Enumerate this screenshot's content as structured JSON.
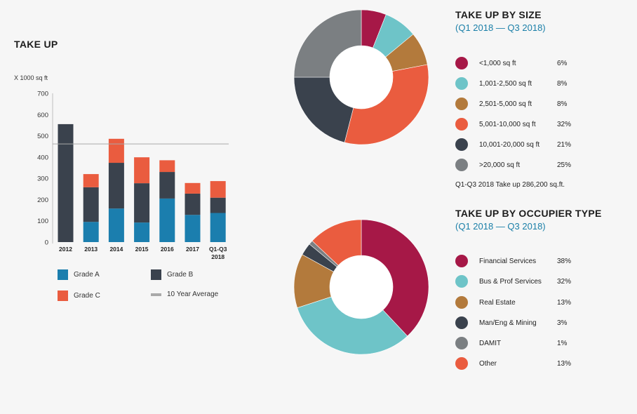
{
  "bar_section": {
    "title": "TAKE UP",
    "unit_label": "X 1000 sq ft",
    "legend": [
      {
        "label": "Grade A",
        "color": "#1b7eae",
        "kind": "box"
      },
      {
        "label": "Grade B",
        "color": "#3a424d",
        "kind": "box"
      },
      {
        "label": "Grade C",
        "color": "#ea5c3f",
        "kind": "box"
      },
      {
        "label": "10 Year Average",
        "color": "#a9a9a9",
        "kind": "line"
      }
    ]
  },
  "size_section": {
    "title": "TAKE UP BY SIZE",
    "subtitle": "(Q1 2018 — Q3 2018)",
    "footnote": "Q1-Q3 2018 Take up 286,200 sq.ft."
  },
  "occupier_section": {
    "title": "TAKE UP BY OCCUPIER TYPE",
    "subtitle": "(Q1 2018 — Q3 2018)"
  },
  "chart_data": [
    {
      "type": "bar",
      "stacked": true,
      "title": "TAKE UP",
      "ylabel": "X 1000 sq ft",
      "xlabel": "",
      "categories": [
        "2012",
        "2013",
        "2014",
        "2015",
        "2016",
        "2017",
        "Q1-Q3 2018"
      ],
      "category_lines": [
        [
          "2012"
        ],
        [
          "2013"
        ],
        [
          "2014"
        ],
        [
          "2015"
        ],
        [
          "2016"
        ],
        [
          "2017"
        ],
        [
          "Q1-Q3",
          "2018"
        ]
      ],
      "series": [
        {
          "name": "Grade A",
          "color": "#1b7eae",
          "values": [
            0,
            95,
            158,
            92,
            205,
            128,
            137
          ]
        },
        {
          "name": "Grade B",
          "color": "#3a424d",
          "values": [
            555,
            163,
            215,
            185,
            125,
            100,
            72
          ]
        },
        {
          "name": "Grade C",
          "color": "#ea5c3f",
          "values": [
            0,
            62,
            113,
            122,
            55,
            50,
            78
          ]
        }
      ],
      "reference_line": {
        "name": "10 Year Average",
        "value": 462,
        "color": "#a9a9a9"
      },
      "ylim": [
        0,
        700
      ],
      "yticks": [
        0,
        100,
        200,
        300,
        400,
        500,
        600,
        700
      ]
    },
    {
      "type": "pie",
      "title": "TAKE UP BY SIZE",
      "subtitle": "(Q1 2018 — Q3 2018)",
      "slices": [
        {
          "label": "<1,000 sq ft",
          "value": 6,
          "pct_label": "6%",
          "color": "#a61847"
        },
        {
          "label": "1,001-2,500 sq ft",
          "value": 8,
          "pct_label": "8%",
          "color": "#6ec4c8"
        },
        {
          "label": "2,501-5,000 sq ft",
          "value": 8,
          "pct_label": "8%",
          "color": "#b37a3c"
        },
        {
          "label": "5,001-10,000 sq ft",
          "value": 32,
          "pct_label": "32%",
          "color": "#ea5c3f"
        },
        {
          "label": "10,001-20,000 sq ft",
          "value": 21,
          "pct_label": "21%",
          "color": "#3a424d"
        },
        {
          "label": ">20,000 sq ft",
          "value": 25,
          "pct_label": "25%",
          "color": "#7b7f82"
        }
      ]
    },
    {
      "type": "pie",
      "title": "TAKE UP BY OCCUPIER TYPE",
      "subtitle": "(Q1 2018 — Q3 2018)",
      "slices": [
        {
          "label": "Financial Services",
          "value": 38,
          "pct_label": "38%",
          "color": "#a61847"
        },
        {
          "label": "Bus & Prof Services",
          "value": 32,
          "pct_label": "32%",
          "color": "#6ec4c8"
        },
        {
          "label": "Real Estate",
          "value": 13,
          "pct_label": "13%",
          "color": "#b37a3c"
        },
        {
          "label": "Man/Eng & Mining",
          "value": 3,
          "pct_label": "3%",
          "color": "#3a424d"
        },
        {
          "label": "DAMIT",
          "value": 1,
          "pct_label": "1%",
          "color": "#7b7f82"
        },
        {
          "label": "Other",
          "value": 13,
          "pct_label": "13%",
          "color": "#ea5c3f"
        }
      ]
    }
  ]
}
